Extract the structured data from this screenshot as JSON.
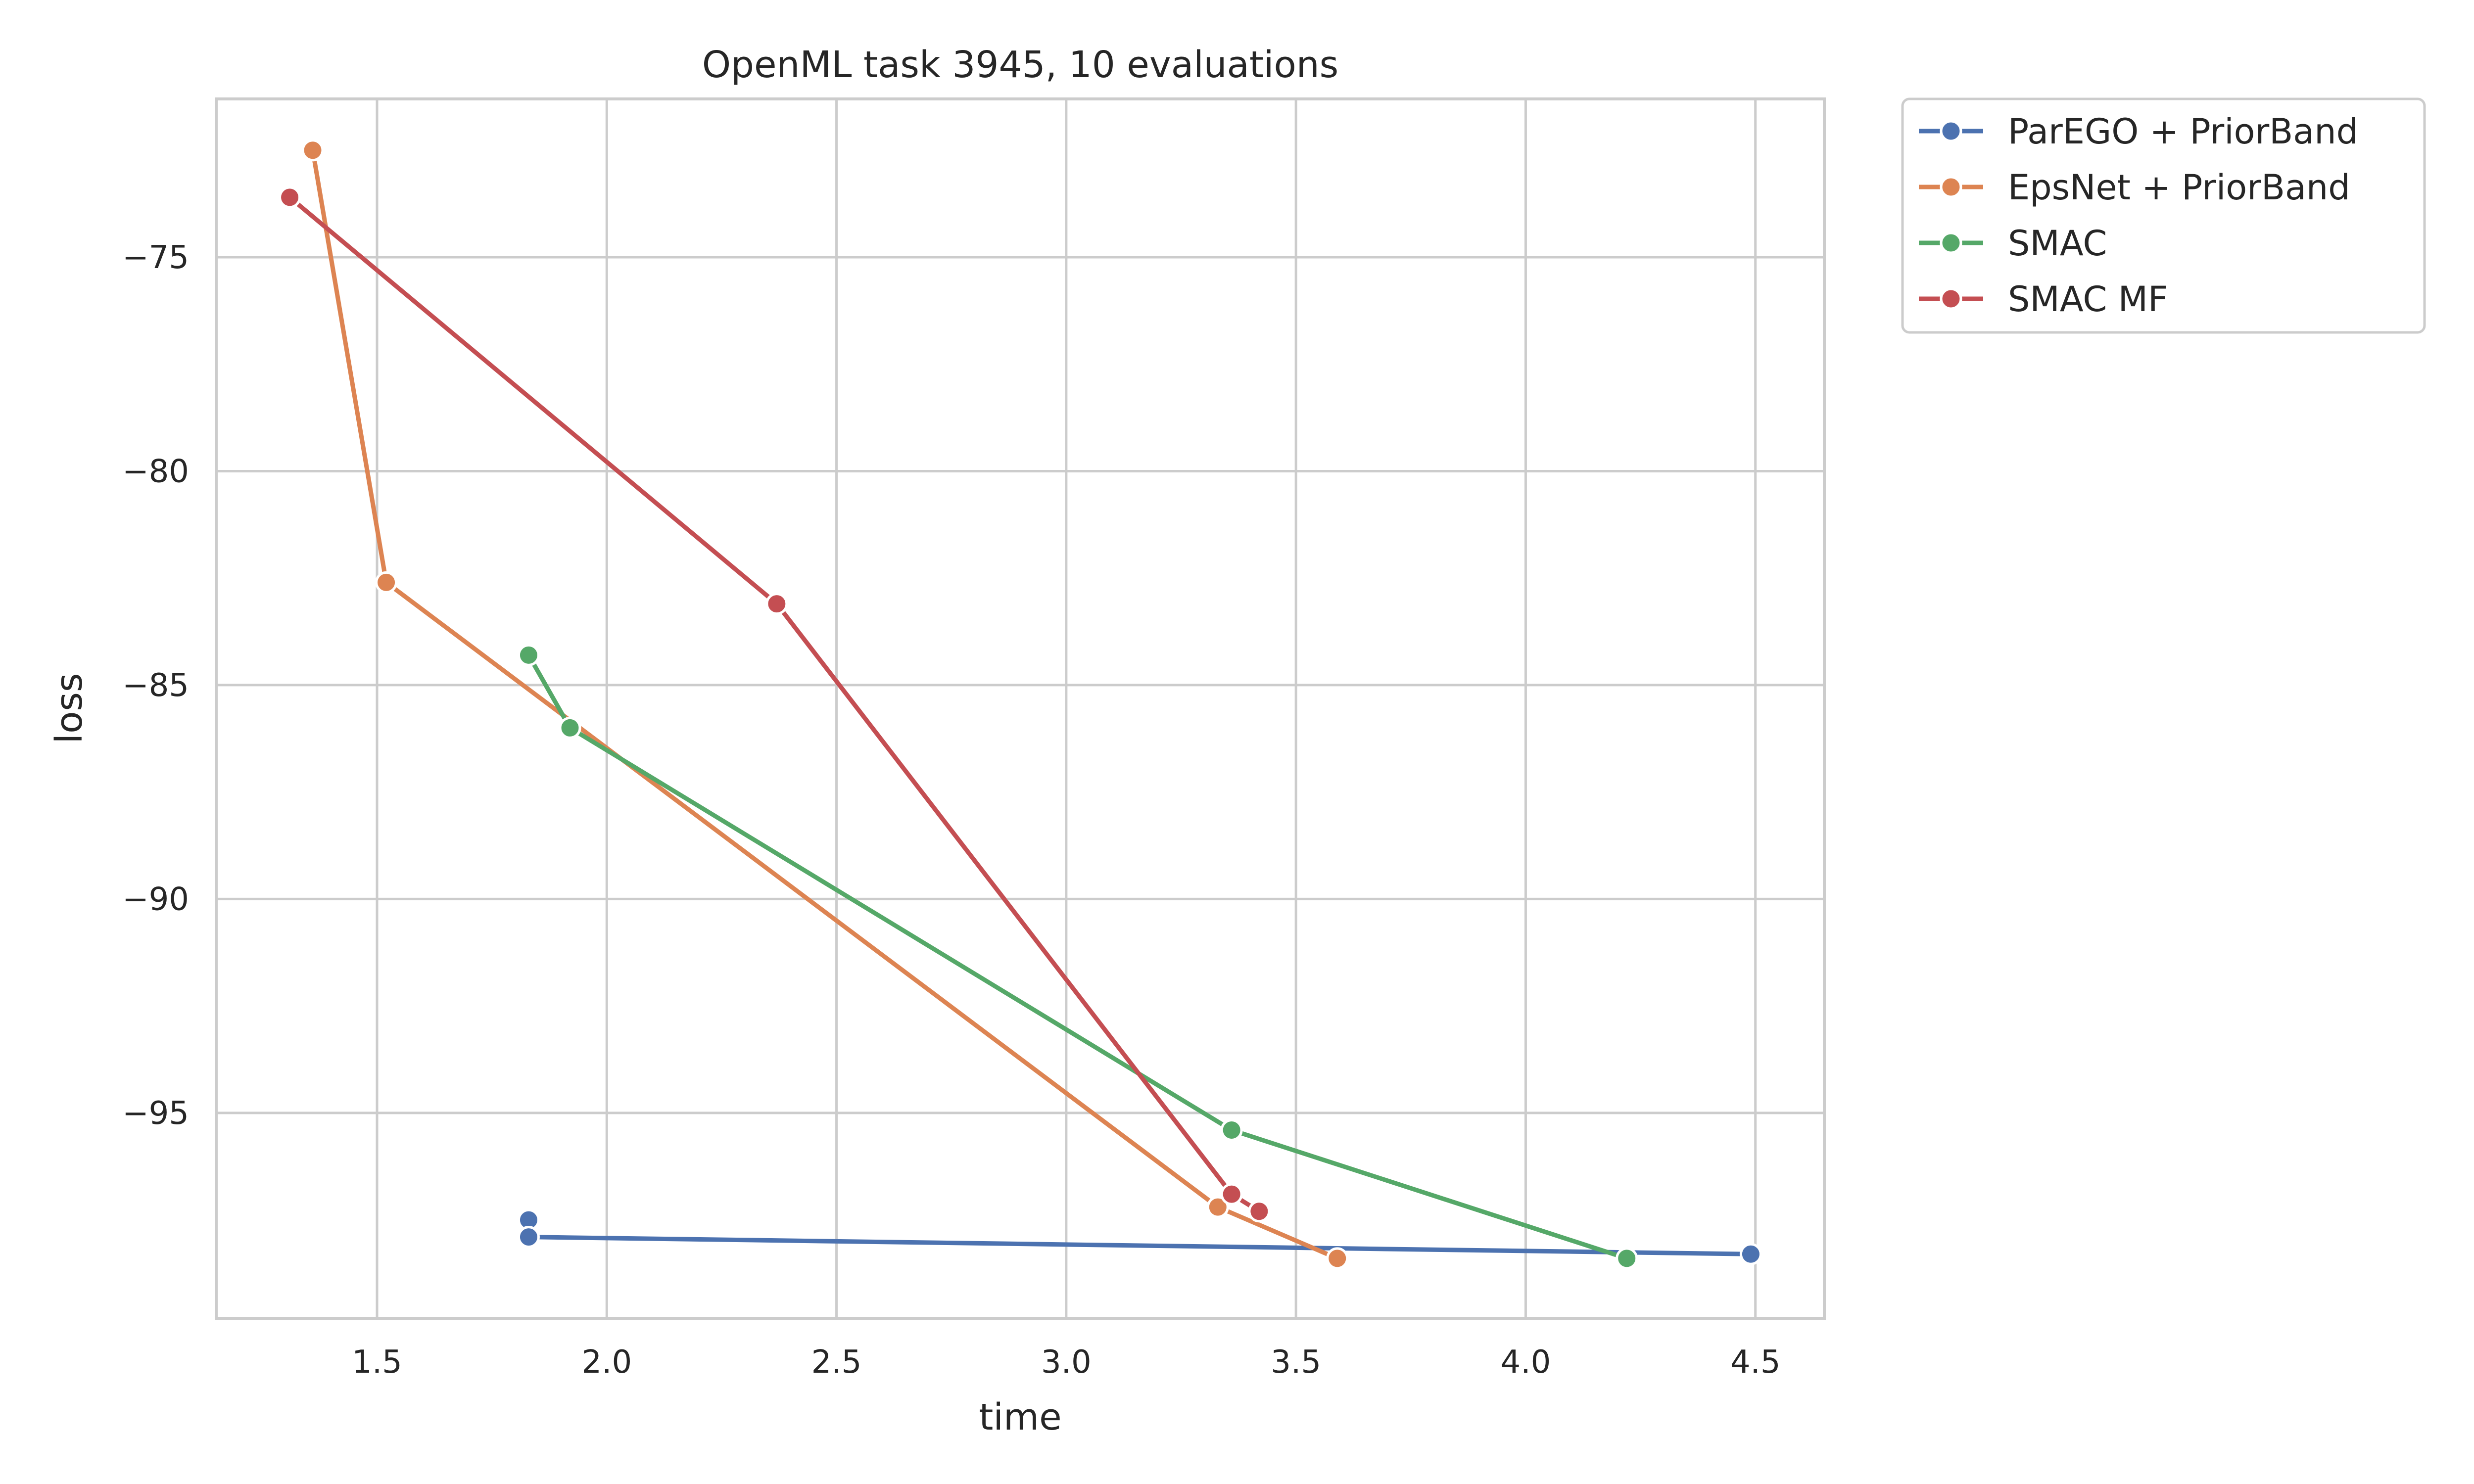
{
  "chart_data": {
    "type": "line",
    "title": "OpenML task 3945, 10 evaluations",
    "xlabel": "time",
    "ylabel": "loss",
    "xlim": [
      1.15,
      4.65
    ],
    "ylim": [
      -99.8,
      -71.3
    ],
    "xticks": [
      1.5,
      2.0,
      2.5,
      3.0,
      3.5,
      4.0,
      4.5
    ],
    "xtick_labels": [
      "1.5",
      "2.0",
      "2.5",
      "3.0",
      "3.5",
      "4.0",
      "4.5"
    ],
    "yticks": [
      -75,
      -80,
      -85,
      -90,
      -95
    ],
    "ytick_labels": [
      "−75",
      "−80",
      "−85",
      "−90",
      "−95"
    ],
    "grid": true,
    "legend_position": "outside-top-right",
    "series": [
      {
        "name": "ParEGO + PriorBand",
        "color": "#4c72b0",
        "x": [
          1.83,
          1.83,
          4.49
        ],
        "y": [
          -97.5,
          -97.9,
          -98.3
        ]
      },
      {
        "name": "EpsNet + PriorBand",
        "color": "#dd8452",
        "x": [
          1.36,
          1.52,
          3.33,
          3.59
        ],
        "y": [
          -72.5,
          -82.6,
          -97.2,
          -98.4
        ]
      },
      {
        "name": "SMAC",
        "color": "#55a868",
        "x": [
          1.83,
          1.92,
          3.36,
          4.22
        ],
        "y": [
          -84.3,
          -86.0,
          -95.4,
          -98.4
        ]
      },
      {
        "name": "SMAC MF",
        "color": "#c44e52",
        "x": [
          1.31,
          2.37,
          3.36,
          3.42
        ],
        "y": [
          -73.6,
          -83.1,
          -96.9,
          -97.3
        ]
      }
    ]
  }
}
